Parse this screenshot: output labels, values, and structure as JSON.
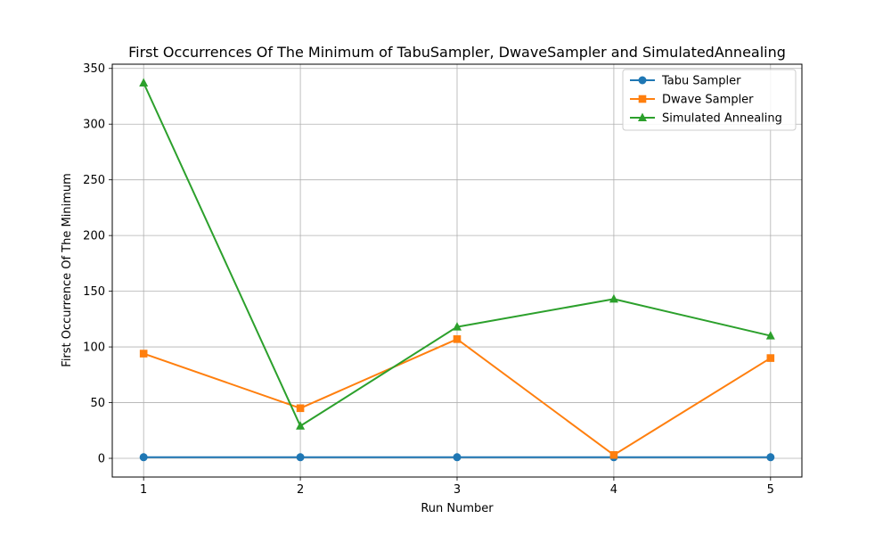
{
  "chart_data": {
    "type": "line",
    "title": "First Occurrences Of The Minimum of TabuSampler, DwaveSampler and SimulatedAnnealing",
    "xlabel": "Run Number",
    "ylabel": "First Occurrence Of The Minimum",
    "x": [
      1,
      2,
      3,
      4,
      5
    ],
    "xticks": [
      1,
      2,
      3,
      4,
      5
    ],
    "yticks": [
      0,
      50,
      100,
      150,
      200,
      250,
      300,
      350
    ],
    "xlim": [
      0.8,
      5.2
    ],
    "ylim": [
      -16.8,
      353.8
    ],
    "grid": true,
    "legend_position": "top-right",
    "series": [
      {
        "name": "Tabu Sampler",
        "color": "#1f77b4",
        "marker": "circle",
        "values": [
          1,
          1,
          1,
          1,
          1
        ]
      },
      {
        "name": "Dwave Sampler",
        "color": "#ff7f0e",
        "marker": "square",
        "values": [
          94,
          45,
          107,
          3,
          90
        ]
      },
      {
        "name": "Simulated Annealing",
        "color": "#2ca02c",
        "marker": "triangle",
        "values": [
          337,
          29,
          118,
          143,
          110
        ]
      }
    ]
  }
}
